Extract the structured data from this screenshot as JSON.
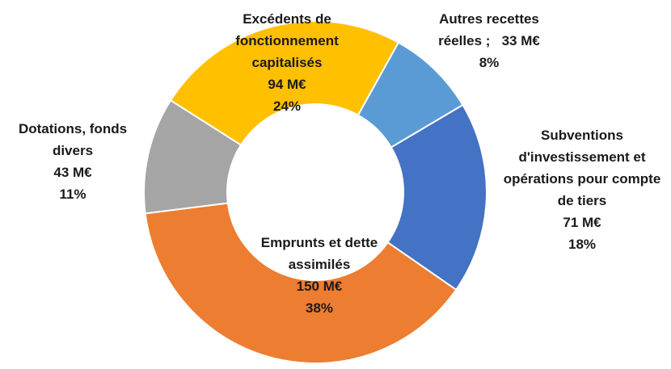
{
  "chart_data": {
    "type": "donut",
    "categories": [
      "Autres recettes réelles ;",
      "Subventions d'investissement et opérations pour compte de tiers",
      "Emprunts et dette assimilés",
      "Dotations, fonds divers",
      "Excédents de fonctionnement capitalisés"
    ],
    "values": [
      33,
      71,
      150,
      43,
      94
    ],
    "value_labels": [
      "33 M€",
      "71 M€",
      "150 M€",
      "43 M€",
      "94 M€"
    ],
    "percents": [
      8,
      18,
      38,
      11,
      24
    ],
    "percent_labels": [
      "8%",
      "18%",
      "38%",
      "11%",
      "24%"
    ],
    "colors": [
      "#5b9bd5",
      "#4472c4",
      "#ed7d31",
      "#a5a5a5",
      "#ffc000"
    ]
  }
}
